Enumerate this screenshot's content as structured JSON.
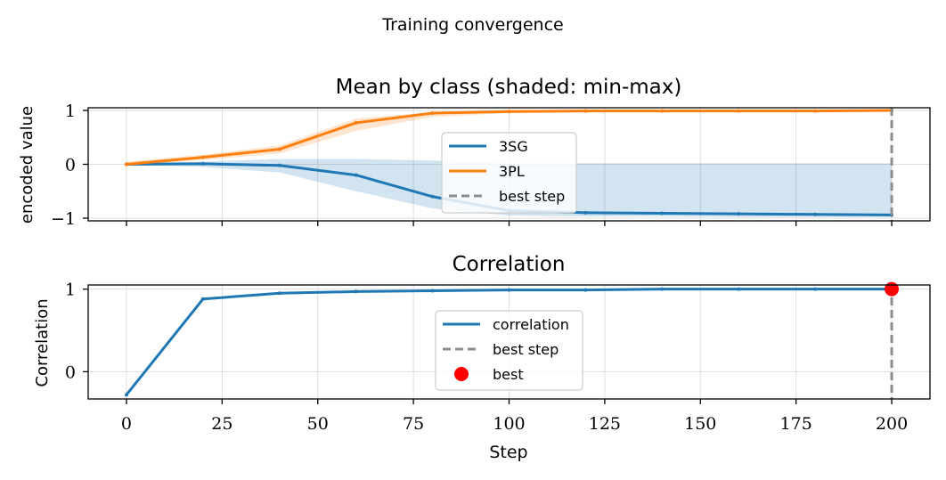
{
  "figure": {
    "suptitle": "Training convergence",
    "xlabel": "Step"
  },
  "colors": {
    "series_a": "#1f77b4",
    "series_b": "#ff7f0e",
    "best_line": "#8c8c8c",
    "best_marker": "#ff0000",
    "grid": "#dddddd"
  },
  "chart_data": [
    {
      "type": "line",
      "title": "Mean by class (shaded: min-max)",
      "xlabel": "",
      "ylabel": "encoded value",
      "xlim": [
        -10,
        210
      ],
      "ylim": [
        -1.05,
        1.05
      ],
      "xticks": [
        0,
        25,
        50,
        75,
        100,
        125,
        150,
        175,
        200
      ],
      "yticks": [
        -1,
        0,
        1
      ],
      "ytick_labels": [
        "−1",
        "0",
        "1"
      ],
      "grid": true,
      "legend_position": "center",
      "x": [
        0,
        20,
        40,
        60,
        80,
        100,
        120,
        140,
        160,
        180,
        200
      ],
      "series": [
        {
          "name": "3SG",
          "color": "#1f77b4",
          "values": [
            0.0,
            0.01,
            -0.02,
            -0.2,
            -0.6,
            -0.86,
            -0.9,
            -0.91,
            -0.92,
            -0.93,
            -0.94
          ],
          "band_min": [
            0.0,
            -0.05,
            -0.15,
            -0.5,
            -0.82,
            -0.95,
            -0.97,
            -0.97,
            -0.98,
            -0.98,
            -0.98
          ],
          "band_max": [
            0.03,
            0.05,
            0.1,
            0.1,
            0.07,
            0.02,
            0.02,
            0.02,
            0.02,
            0.02,
            0.02
          ]
        },
        {
          "name": "3PL",
          "color": "#ff7f0e",
          "values": [
            0.0,
            0.13,
            0.28,
            0.77,
            0.95,
            0.98,
            0.99,
            0.99,
            0.99,
            0.99,
            1.0
          ],
          "band_min": [
            -0.02,
            0.08,
            0.2,
            0.62,
            0.88,
            0.95,
            0.97,
            0.98,
            0.98,
            0.99,
            0.99
          ],
          "band_max": [
            0.05,
            0.18,
            0.35,
            0.85,
            0.97,
            1.0,
            1.0,
            1.0,
            1.0,
            1.0,
            1.0
          ]
        }
      ],
      "best_step": 200,
      "legend": [
        "3SG",
        "3PL",
        "best step"
      ]
    },
    {
      "type": "line",
      "title": "Correlation",
      "xlabel": "Step",
      "ylabel": "Correlation",
      "xlim": [
        -10,
        210
      ],
      "ylim": [
        -0.33,
        1.05
      ],
      "xticks": [
        0,
        25,
        50,
        75,
        100,
        125,
        150,
        175,
        200
      ],
      "yticks": [
        0,
        1
      ],
      "ytick_labels": [
        "0",
        "1"
      ],
      "grid": true,
      "legend_position": "center",
      "x": [
        0,
        20,
        40,
        60,
        80,
        100,
        120,
        140,
        160,
        180,
        200
      ],
      "series": [
        {
          "name": "correlation",
          "color": "#1f77b4",
          "values": [
            -0.28,
            0.88,
            0.95,
            0.97,
            0.98,
            0.99,
            0.99,
            1.0,
            1.0,
            1.0,
            1.0
          ]
        }
      ],
      "best_step": 200,
      "best_value": 1.0,
      "legend": [
        "correlation",
        "best step",
        "best"
      ]
    }
  ]
}
